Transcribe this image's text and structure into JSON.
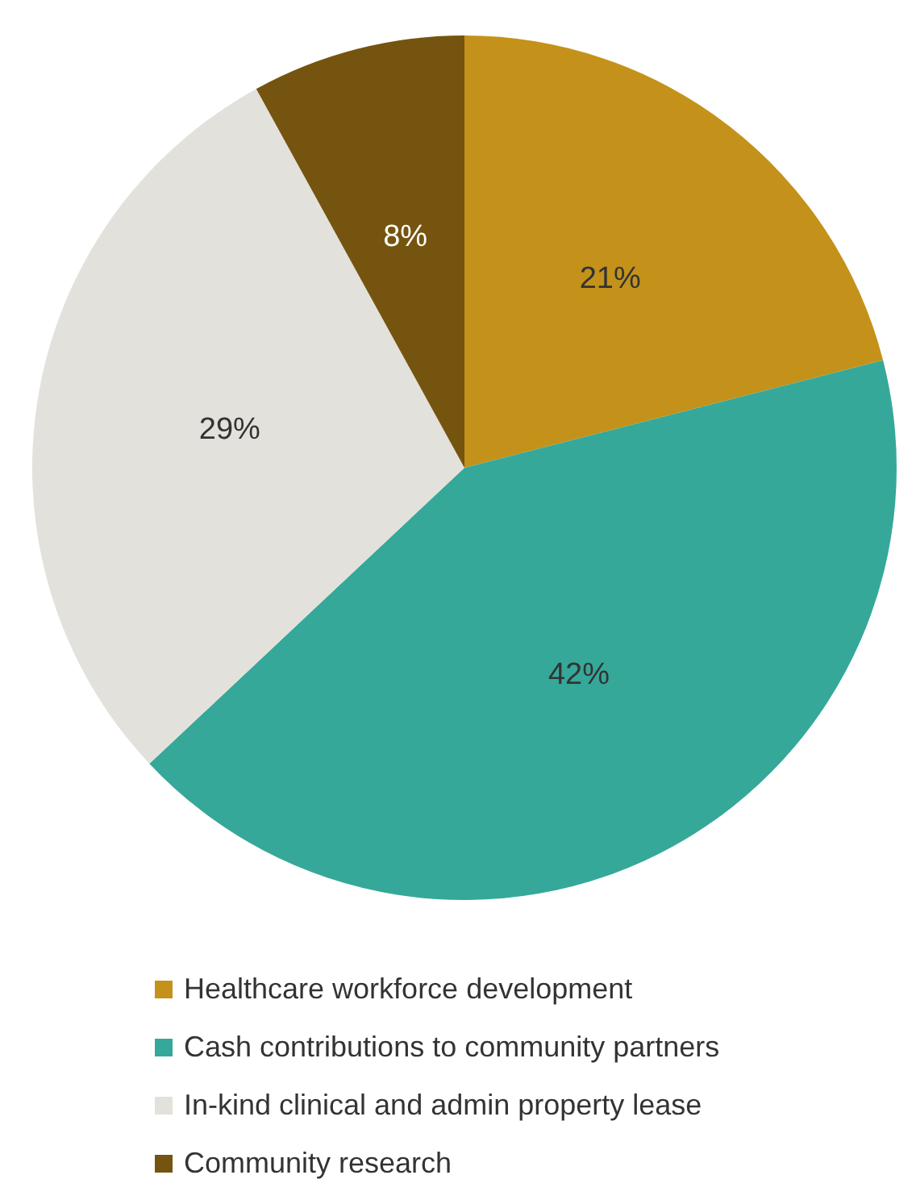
{
  "chart_data": {
    "type": "pie",
    "categories": [
      "Healthcare workforce development",
      "Cash contributions to community partners",
      "In-kind clinical and admin property lease",
      "Community research"
    ],
    "values": [
      21,
      42,
      29,
      8
    ],
    "colors": [
      "#c4921a",
      "#35a899",
      "#e3e1db",
      "#75540f"
    ],
    "value_labels": [
      "21%",
      "42%",
      "29%",
      "8%"
    ],
    "legend": "bottom"
  }
}
